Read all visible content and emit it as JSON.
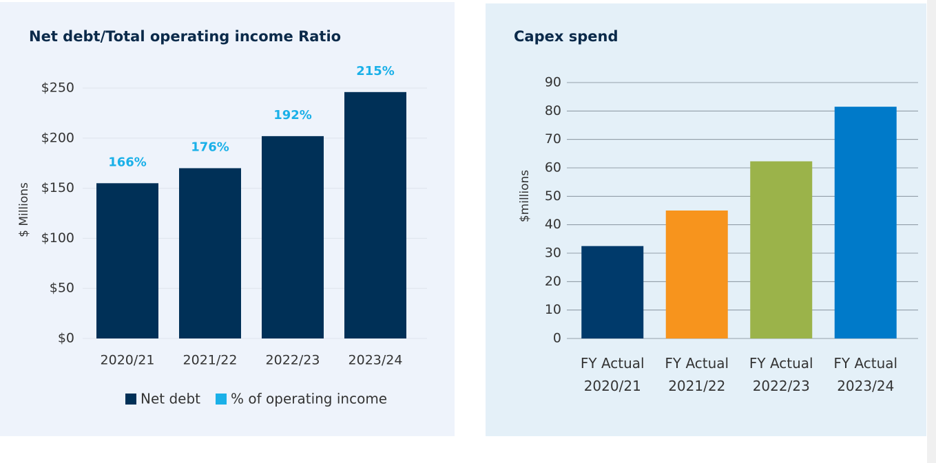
{
  "chart_data": [
    {
      "type": "bar",
      "title": "Net debt/Total operating income Ratio",
      "y_label": "$ Millions",
      "categories": [
        "2020/21",
        "2021/22",
        "2022/23",
        "2023/24"
      ],
      "series": [
        {
          "name": "Net debt",
          "color": "#003057",
          "values": [
            155,
            170,
            202,
            246
          ]
        },
        {
          "name": "% of operating income",
          "color": "#1ab0e8",
          "values": [
            166,
            176,
            192,
            215
          ],
          "value_labels": [
            "166%",
            "176%",
            "192%",
            "215%"
          ]
        }
      ],
      "ylim": [
        0,
        250
      ],
      "yticks": [
        {
          "value": 0,
          "label": "$0"
        },
        {
          "value": 50,
          "label": "$50"
        },
        {
          "value": 100,
          "label": "$100"
        },
        {
          "value": 150,
          "label": "$150"
        },
        {
          "value": 200,
          "label": "$200"
        },
        {
          "value": 250,
          "label": "$250"
        }
      ],
      "grid": true,
      "legend": "bottom"
    },
    {
      "type": "bar",
      "title": "Capex spend",
      "y_label": "$millions",
      "categories": [
        "FY Actual 2020/21",
        "FY Actual 2021/22",
        "FY Actual 2022/23",
        "FY Actual 2023/24"
      ],
      "values": [
        32.5,
        45,
        62.3,
        81.5
      ],
      "colors": [
        "#003a6b",
        "#f7941d",
        "#9bb34a",
        "#007ac9"
      ],
      "ylim": [
        0,
        90
      ],
      "yticks": [
        0,
        10,
        20,
        30,
        40,
        50,
        60,
        70,
        80,
        90
      ],
      "grid": true
    }
  ]
}
